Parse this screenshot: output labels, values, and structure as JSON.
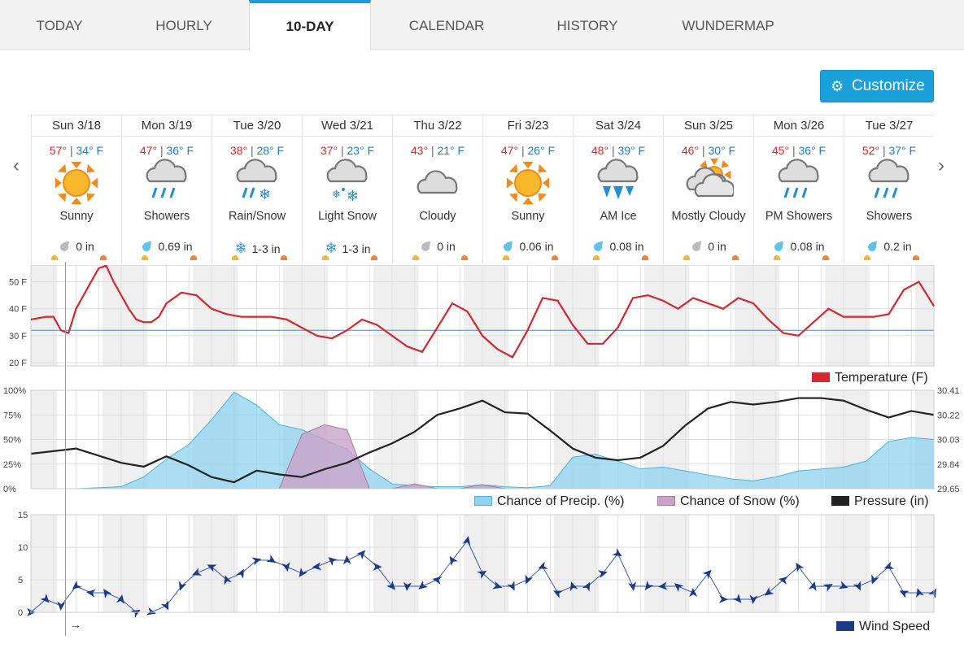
{
  "tabs": [
    "TODAY",
    "HOURLY",
    "10-DAY",
    "CALENDAR",
    "HISTORY",
    "WUNDERMAP"
  ],
  "active_tab": "10-DAY",
  "customize_label": "Customize",
  "days": [
    {
      "date": "Sun 3/18",
      "hi": "57°",
      "lo": "34° F",
      "cond": "Sunny",
      "icon": "sun-icon",
      "precip": "0 in",
      "ptype": "dry"
    },
    {
      "date": "Mon 3/19",
      "hi": "47°",
      "lo": "36° F",
      "cond": "Showers",
      "icon": "rain-icon",
      "precip": "0.69 in",
      "ptype": "rain"
    },
    {
      "date": "Tue 3/20",
      "hi": "38°",
      "lo": "28° F",
      "cond": "Rain/Snow",
      "icon": "rain-snow-icon",
      "precip": "1-3 in",
      "ptype": "snow"
    },
    {
      "date": "Wed 3/21",
      "hi": "37°",
      "lo": "23° F",
      "cond": "Light Snow",
      "icon": "snow-icon",
      "precip": "1-3 in",
      "ptype": "snow"
    },
    {
      "date": "Thu 3/22",
      "hi": "43°",
      "lo": "21° F",
      "cond": "Cloudy",
      "icon": "cloud-icon",
      "precip": "0 in",
      "ptype": "dry"
    },
    {
      "date": "Fri 3/23",
      "hi": "47°",
      "lo": "26° F",
      "cond": "Sunny",
      "icon": "sun-icon",
      "precip": "0.06 in",
      "ptype": "rain"
    },
    {
      "date": "Sat 3/24",
      "hi": "48°",
      "lo": "39° F",
      "cond": "AM Ice",
      "icon": "ice-icon",
      "precip": "0.08 in",
      "ptype": "rain"
    },
    {
      "date": "Sun 3/25",
      "hi": "46°",
      "lo": "30° F",
      "cond": "Mostly Cloudy",
      "icon": "mostly-cloudy-icon",
      "precip": "0 in",
      "ptype": "dry"
    },
    {
      "date": "Mon 3/26",
      "hi": "45°",
      "lo": "36° F",
      "cond": "PM Showers",
      "icon": "rain-icon",
      "precip": "0.08 in",
      "ptype": "rain"
    },
    {
      "date": "Tue 3/27",
      "hi": "52°",
      "lo": "37° F",
      "cond": "Showers",
      "icon": "rain-icon",
      "precip": "0.2 in",
      "ptype": "rain"
    }
  ],
  "colors": {
    "temperature": "#d2282f",
    "precip": "#8fd3ee",
    "snow": "#c9a3c8",
    "pressure": "#222222",
    "wind": "#1c3a8a",
    "accent": "#1aa1dc"
  },
  "chart_data": [
    {
      "type": "line",
      "name": "temperature",
      "legend": "Temperature (F)",
      "yticks": [
        "50 F",
        "40 F",
        "30 F",
        "20 F"
      ],
      "ylim": [
        20,
        55
      ],
      "freezing_line": 32,
      "x_hours": [
        0,
        4,
        6,
        8,
        10,
        12,
        14,
        16,
        18,
        20,
        22,
        24,
        26,
        28,
        30,
        32,
        34,
        36,
        40,
        44,
        48,
        52,
        56,
        60,
        64,
        68,
        72,
        76,
        80,
        84,
        88,
        92,
        96,
        100,
        104,
        108,
        112,
        116,
        120,
        124,
        128,
        132,
        136,
        140,
        144,
        148,
        152,
        156,
        160,
        164,
        168,
        172,
        176,
        180,
        184,
        188,
        192,
        196,
        200,
        204,
        208,
        212,
        216,
        220,
        224,
        228,
        232,
        236,
        240
      ],
      "values": [
        36,
        37,
        37,
        32,
        31,
        40,
        45,
        50,
        55,
        56,
        50,
        45,
        40,
        36,
        35,
        35,
        37,
        42,
        46,
        45,
        40,
        38,
        37,
        37,
        37,
        36,
        33,
        30,
        29,
        32,
        36,
        34,
        30,
        26,
        24,
        33,
        42,
        39,
        30,
        25,
        22,
        32,
        44,
        43,
        34,
        27,
        27,
        33,
        44,
        45,
        43,
        40,
        44,
        42,
        40,
        44,
        42,
        36,
        31,
        30,
        35,
        40,
        37,
        37,
        37,
        38,
        47,
        50,
        41
      ],
      "grid": true
    },
    {
      "type": "area",
      "name": "precip-and-pressure",
      "yticks_left": [
        "100%",
        "75%",
        "50%",
        "25%",
        "0%"
      ],
      "yticks_right": [
        "30.41",
        "30.22",
        "30.03",
        "29.84",
        "29.65"
      ],
      "legend": [
        "Chance of Precip. (%)",
        "Chance of Snow (%)",
        "Pressure (in)"
      ],
      "x_hours": [
        0,
        12,
        24,
        30,
        36,
        42,
        48,
        54,
        60,
        66,
        72,
        78,
        84,
        90,
        96,
        102,
        108,
        114,
        120,
        126,
        132,
        138,
        144,
        150,
        156,
        162,
        168,
        174,
        180,
        186,
        192,
        198,
        204,
        210,
        216,
        222,
        228,
        234,
        240
      ],
      "precip": [
        0,
        0,
        2,
        12,
        30,
        45,
        70,
        98,
        85,
        65,
        60,
        50,
        40,
        20,
        5,
        3,
        2,
        2,
        4,
        2,
        1,
        3,
        32,
        35,
        28,
        20,
        22,
        18,
        14,
        10,
        8,
        12,
        18,
        20,
        22,
        28,
        48,
        52,
        50
      ],
      "snow": [
        0,
        0,
        0,
        0,
        0,
        0,
        0,
        0,
        0,
        0,
        55,
        65,
        60,
        0,
        0,
        5,
        0,
        0,
        4,
        0,
        0,
        0,
        0,
        0,
        0,
        0,
        0,
        0,
        0,
        0,
        0,
        0,
        0,
        0,
        0,
        0,
        0,
        0,
        0
      ],
      "pressure": [
        29.92,
        29.96,
        29.85,
        29.82,
        29.9,
        29.83,
        29.74,
        29.7,
        29.79,
        29.76,
        29.74,
        29.8,
        29.85,
        29.93,
        30.0,
        30.09,
        30.22,
        30.27,
        30.33,
        30.24,
        30.23,
        30.1,
        29.96,
        29.89,
        29.87,
        29.89,
        29.98,
        30.14,
        30.27,
        30.32,
        30.3,
        30.32,
        30.35,
        30.35,
        30.33,
        30.26,
        30.2,
        30.25,
        30.22
      ],
      "grid": true
    },
    {
      "type": "line",
      "name": "wind",
      "yticks": [
        "15",
        "10",
        "5",
        "0"
      ],
      "ylim": [
        0,
        15
      ],
      "legend": "Wind Speed",
      "x_hours": [
        0,
        4,
        8,
        12,
        16,
        20,
        24,
        28,
        32,
        36,
        40,
        44,
        48,
        52,
        56,
        60,
        64,
        68,
        72,
        76,
        80,
        84,
        88,
        92,
        96,
        100,
        104,
        108,
        112,
        116,
        120,
        124,
        128,
        132,
        136,
        140,
        144,
        148,
        152,
        156,
        160,
        164,
        168,
        172,
        176,
        180,
        184,
        188,
        192,
        196,
        200,
        204,
        208,
        212,
        216,
        220,
        224,
        228,
        232,
        236,
        240
      ],
      "values": [
        0,
        2,
        1,
        4,
        3,
        3,
        2,
        0,
        0,
        1,
        4,
        6,
        7,
        5,
        6,
        8,
        8,
        7,
        6,
        7,
        8,
        8,
        9,
        7,
        4,
        4,
        4,
        5,
        8,
        11,
        6,
        4,
        4,
        5,
        7,
        3,
        4,
        4,
        6,
        9,
        4,
        4,
        4,
        4,
        3,
        6,
        2,
        2,
        2,
        3,
        5,
        7,
        4,
        4,
        4,
        4,
        5,
        7,
        3,
        3,
        3
      ],
      "grid": true
    }
  ]
}
